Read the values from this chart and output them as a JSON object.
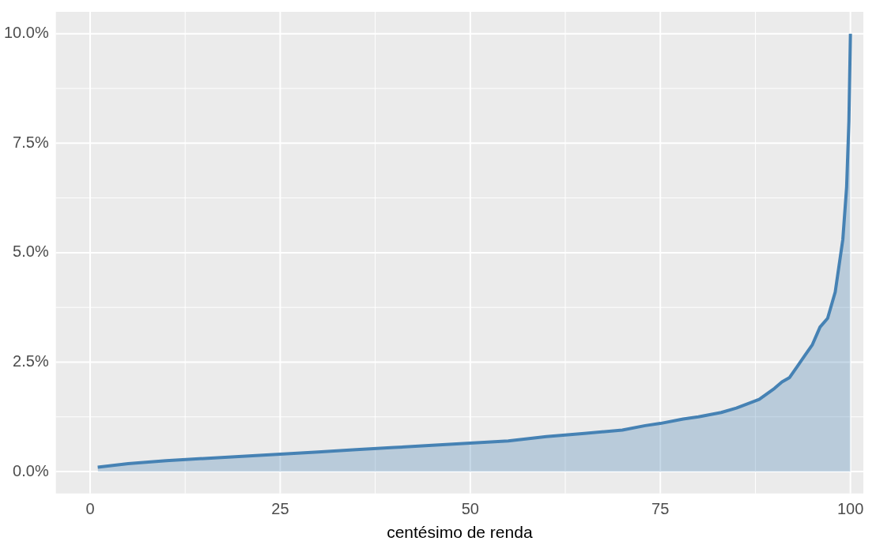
{
  "chart_data": {
    "type": "area",
    "xlabel": "centésimo de renda",
    "x": [
      1,
      5,
      10,
      15,
      20,
      25,
      30,
      35,
      40,
      45,
      50,
      55,
      60,
      65,
      70,
      73,
      75,
      78,
      80,
      83,
      85,
      88,
      90,
      91,
      92,
      93,
      94,
      95,
      96,
      97,
      98,
      98.5,
      99,
      99.5,
      99.8,
      100
    ],
    "series": [
      {
        "color": "#4682b4",
        "values": [
          0.1,
          0.18,
          0.25,
          0.3,
          0.35,
          0.4,
          0.45,
          0.5,
          0.55,
          0.6,
          0.65,
          0.7,
          0.8,
          0.87,
          0.95,
          1.05,
          1.1,
          1.2,
          1.25,
          1.35,
          1.45,
          1.65,
          1.9,
          2.05,
          2.15,
          2.4,
          2.65,
          2.9,
          3.3,
          3.5,
          4.1,
          4.7,
          5.3,
          6.5,
          8,
          10
        ]
      }
    ],
    "xlim": [
      -4.5,
      101.7
    ],
    "xticks": [
      0,
      25,
      50,
      75,
      100
    ],
    "ylim": [
      -0.5,
      10.5
    ],
    "yticks": [
      {
        "value": 0,
        "label": "0.0%"
      },
      {
        "value": 2.5,
        "label": "2.5%"
      },
      {
        "value": 5,
        "label": "5.0%"
      },
      {
        "value": 7.5,
        "label": "7.5%"
      },
      {
        "value": 10,
        "label": "10.0%"
      }
    ],
    "grid": true,
    "legend": false
  }
}
